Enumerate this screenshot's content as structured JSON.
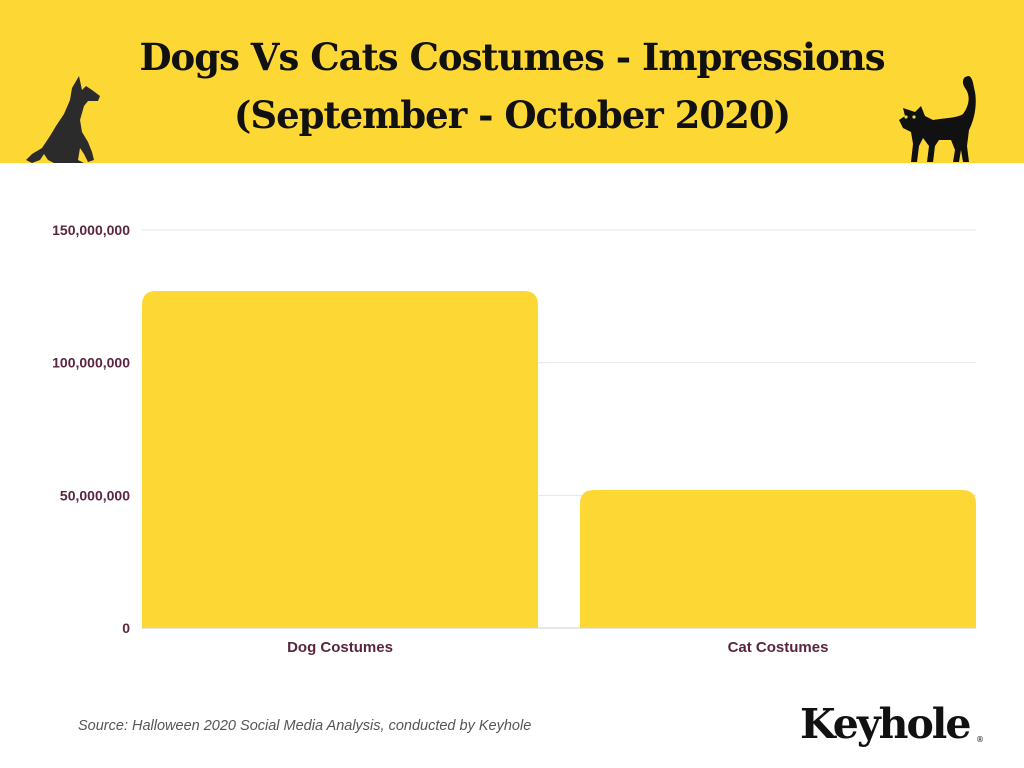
{
  "header": {
    "title_line1": "Dogs Vs Cats Costumes - Impressions",
    "title_line2": "(September - October 2020)",
    "background_color": "#fdd835",
    "left_icon": "dog-silhouette-icon",
    "right_icon": "cat-silhouette-icon"
  },
  "chart_data": {
    "type": "bar",
    "title": "Dogs Vs Cats Costumes - Impressions (September - October 2020)",
    "categories": [
      "Dog Costumes",
      "Cat Costumes"
    ],
    "values": [
      127000000,
      52000000
    ],
    "ylim": [
      0,
      150000000
    ],
    "yticks": [
      0,
      50000000,
      100000000,
      150000000
    ],
    "ytick_labels": [
      "0",
      "50,000,000",
      "100,000,000",
      "150,000,000"
    ],
    "xlabel": "",
    "ylabel": "",
    "grid": true,
    "legend": "none",
    "bar_color": "#fdd835",
    "label_color": "#5a2540"
  },
  "footer": {
    "source": "Source: Halloween 2020 Social Media Analysis, conducted by Keyhole",
    "brand": "Keyhole",
    "brand_mark": "®"
  }
}
